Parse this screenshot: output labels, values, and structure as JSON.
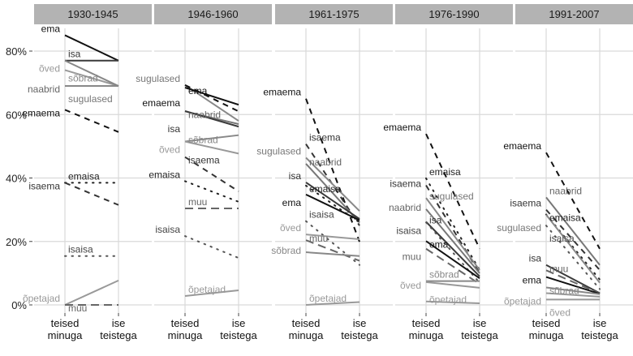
{
  "chart_data": {
    "type": "line",
    "subtype": "faceted slope chart",
    "facets": [
      "1930-1945",
      "1946-1960",
      "1961-1975",
      "1976-1990",
      "1991-2007"
    ],
    "x_categories": [
      [
        "teised",
        "minuga"
      ],
      [
        "ise",
        "teistega"
      ]
    ],
    "y_ticks": [
      "0%",
      "20%",
      "40%",
      "60%",
      "80%"
    ],
    "ylim": [
      0,
      88
    ],
    "grid": true,
    "styles": {
      "ema": {
        "color": "#111111",
        "dash": "solid",
        "label_color": "#111111"
      },
      "isa": {
        "color": "#3a3a3a",
        "dash": "solid",
        "label_color": "#333333"
      },
      "emaema": {
        "color": "#111111",
        "dash": "dashed",
        "label_color": "#111111"
      },
      "isaema": {
        "color": "#333333",
        "dash": "dashed",
        "label_color": "#333333"
      },
      "emaisa": {
        "color": "#222222",
        "dash": "dotted",
        "label_color": "#222222"
      },
      "isaisa": {
        "color": "#555555",
        "dash": "dotted",
        "label_color": "#444444"
      },
      "naabrid": {
        "color": "#777777",
        "dash": "solid",
        "label_color": "#666666"
      },
      "sugulased": {
        "color": "#888888",
        "dash": "solid",
        "label_color": "#777777"
      },
      "sõbrad": {
        "color": "#888888",
        "dash": "solid",
        "label_color": "#888888"
      },
      "õved": {
        "color": "#999999",
        "dash": "solid",
        "label_color": "#999999"
      },
      "õpetajad": {
        "color": "#999999",
        "dash": "solid",
        "label_color": "#999999"
      },
      "muu": {
        "color": "#666666",
        "dash": "longdash",
        "label_color": "#666666"
      }
    },
    "series": [
      {
        "facet": "1930-1945",
        "lines": [
          {
            "name": "ema",
            "values": [
              85,
              77
            ]
          },
          {
            "name": "isa",
            "values": [
              77,
              77
            ]
          },
          {
            "name": "õved",
            "values": [
              74,
              69
            ]
          },
          {
            "name": "sõbrad",
            "values": [
              77,
              69
            ]
          },
          {
            "name": "naabrid",
            "values": [
              69,
              69
            ]
          },
          {
            "name": "sugulased",
            "values": [
              69,
              69
            ]
          },
          {
            "name": "emaema",
            "values": [
              61.5,
              54.5
            ]
          },
          {
            "name": "emaisa",
            "values": [
              38.5,
              38.5
            ]
          },
          {
            "name": "isaema",
            "values": [
              38.5,
              31.5
            ]
          },
          {
            "name": "isaisa",
            "values": [
              15.4,
              15.4
            ]
          },
          {
            "name": "õpetajad",
            "values": [
              0,
              7.7
            ]
          },
          {
            "name": "muu",
            "values": [
              0,
              0
            ]
          }
        ]
      },
      {
        "facet": "1946-1960",
        "lines": [
          {
            "name": "sugulased",
            "values": [
              69.3,
              58
            ]
          },
          {
            "name": "ema",
            "values": [
              68.5,
              63.1
            ]
          },
          {
            "name": "emaema",
            "values": [
              69.3,
              61
            ]
          },
          {
            "name": "naabrid",
            "values": [
              61,
              57
            ]
          },
          {
            "name": "isa",
            "values": [
              61.1,
              56.2
            ]
          },
          {
            "name": "sõbrad",
            "values": [
              51.5,
              53.5
            ]
          },
          {
            "name": "õved",
            "values": [
              51.5,
              47.7
            ]
          },
          {
            "name": "isaema",
            "values": [
              46.6,
              35.8
            ]
          },
          {
            "name": "emaisa",
            "values": [
              39,
              32.5
            ]
          },
          {
            "name": "muu",
            "values": [
              30.4,
              30.4
            ]
          },
          {
            "name": "isaisa",
            "values": [
              21.7,
              14.8
            ]
          },
          {
            "name": "õpetajad",
            "values": [
              2.8,
              4.6
            ]
          }
        ]
      },
      {
        "facet": "1961-1975",
        "lines": [
          {
            "name": "emaema",
            "values": [
              65,
              19.9
            ]
          },
          {
            "name": "isaema",
            "values": [
              50.7,
              25
            ]
          },
          {
            "name": "sugulased",
            "values": [
              46.4,
              29.6
            ]
          },
          {
            "name": "naabrid",
            "values": [
              44.5,
              26
            ]
          },
          {
            "name": "isa",
            "values": [
              38.6,
              27.1
            ]
          },
          {
            "name": "emaisa",
            "values": [
              37.6,
              26
            ]
          },
          {
            "name": "ema",
            "values": [
              34.8,
              26.7
            ]
          },
          {
            "name": "isaisa",
            "values": [
              26.4,
              12.6
            ]
          },
          {
            "name": "õved",
            "values": [
              22.2,
              20.7
            ]
          },
          {
            "name": "muu",
            "values": [
              20.4,
              13.9
            ]
          },
          {
            "name": "sõbrad",
            "values": [
              16.6,
              15.4
            ]
          },
          {
            "name": "õpetajad",
            "values": [
              0,
              0.9
            ]
          }
        ]
      },
      {
        "facet": "1976-1990",
        "lines": [
          {
            "name": "emaema",
            "values": [
              53.9,
              17.7
            ]
          },
          {
            "name": "emaisa",
            "values": [
              39.9,
              11
            ]
          },
          {
            "name": "isaema",
            "values": [
              37.7,
              10
            ]
          },
          {
            "name": "sugulased",
            "values": [
              33.7,
              11
            ]
          },
          {
            "name": "naabrid",
            "values": [
              30.2,
              10
            ]
          },
          {
            "name": "isa",
            "values": [
              26.2,
              9
            ]
          },
          {
            "name": "isaisa",
            "values": [
              26,
              7
            ]
          },
          {
            "name": "ema",
            "values": [
              20.1,
              8.4
            ]
          },
          {
            "name": "muu",
            "values": [
              17.7,
              6.6
            ]
          },
          {
            "name": "sõbrad",
            "values": [
              7.5,
              7.5
            ]
          },
          {
            "name": "õved",
            "values": [
              7.2,
              5.4
            ]
          },
          {
            "name": "õpetajad",
            "values": [
              1.1,
              0.5
            ]
          }
        ]
      },
      {
        "facet": "1991-2007",
        "lines": [
          {
            "name": "emaema",
            "values": [
              48,
              17.7
            ]
          },
          {
            "name": "naabrid",
            "values": [
              33.9,
              12.6
            ]
          },
          {
            "name": "isaema",
            "values": [
              30,
              11
            ]
          },
          {
            "name": "emaisa",
            "values": [
              28.5,
              8
            ]
          },
          {
            "name": "sugulased",
            "values": [
              28.4,
              7
            ]
          },
          {
            "name": "isaisa",
            "values": [
              25,
              5
            ]
          },
          {
            "name": "isa",
            "values": [
              12.6,
              3.7
            ]
          },
          {
            "name": "muu",
            "values": [
              10.9,
              3.6
            ]
          },
          {
            "name": "ema",
            "values": [
              8.8,
              3.5
            ]
          },
          {
            "name": "sõbrad",
            "values": [
              5.5,
              3.4
            ]
          },
          {
            "name": "õpetajad",
            "values": [
              3.7,
              2.6
            ]
          },
          {
            "name": "õved",
            "values": [
              1.7,
              1.7
            ]
          }
        ]
      }
    ]
  }
}
